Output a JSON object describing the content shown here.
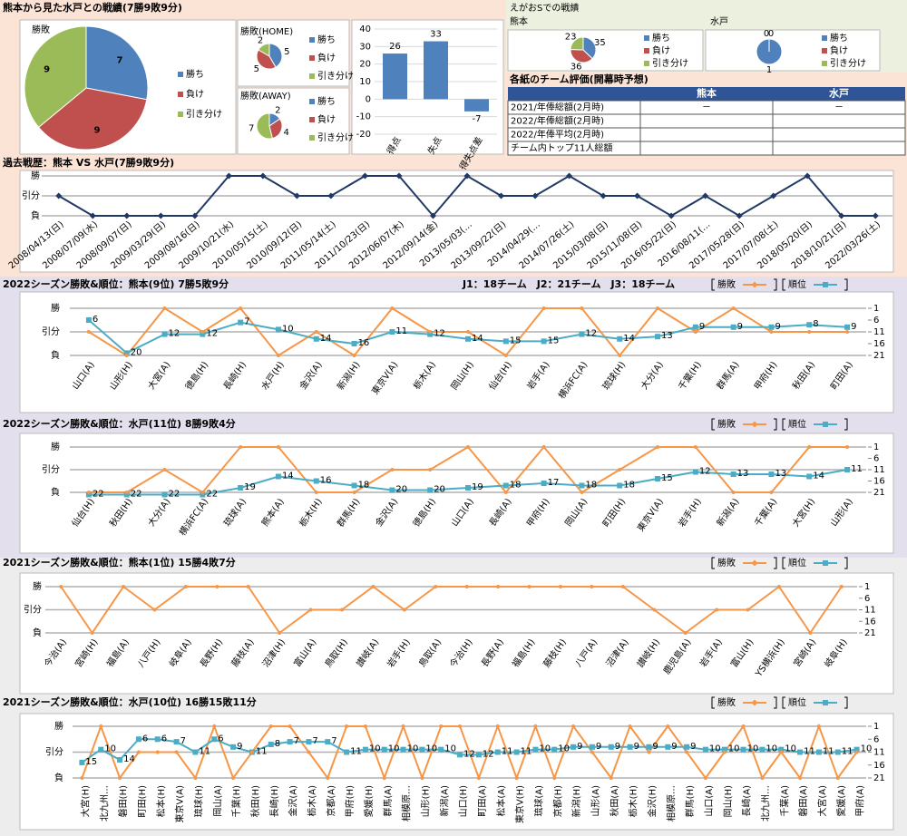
{
  "header": {
    "title": "熊本から見た水戸との戦績(7勝9敗9分)"
  },
  "egao": {
    "title": "えがおSでの戦績"
  },
  "table": {
    "title": "各紙のチーム評価(開幕時予想)",
    "header": [
      "熊本",
      "水戸"
    ],
    "rows": [
      [
        "2021/年俸総額(2月時)",
        "－",
        "－"
      ],
      [
        "2022/年俸総額(2月時)"
      ],
      [
        "2022/年俸平均(2月時)"
      ],
      [
        "チーム内トップ11人総額"
      ]
    ]
  },
  "chart_data": [
    {
      "type": "pie",
      "title": "勝敗",
      "categories": [
        "勝ち",
        "負け",
        "引き分け"
      ],
      "values": [
        7,
        9,
        9
      ],
      "colors": [
        "#4f81bd",
        "#c0504d",
        "#9bbb59"
      ]
    },
    {
      "type": "pie",
      "title": "勝敗(HOME)",
      "categories": [
        "勝ち",
        "負け",
        "引き分け"
      ],
      "values": [
        5,
        5,
        2
      ],
      "colors": [
        "#4f81bd",
        "#c0504d",
        "#9bbb59"
      ]
    },
    {
      "type": "pie",
      "title": "勝敗(AWAY)",
      "categories": [
        "勝ち",
        "負け",
        "引き分け"
      ],
      "values": [
        2,
        4,
        7
      ],
      "colors": [
        "#4f81bd",
        "#c0504d",
        "#9bbb59"
      ]
    },
    {
      "type": "bar",
      "categories": [
        "得点",
        "失点",
        "得失点差"
      ],
      "values": [
        26,
        33,
        -7
      ],
      "color": "#4f81bd",
      "ylim": [
        -20,
        40
      ],
      "yticks": [
        -20,
        -10,
        0,
        10,
        20,
        30,
        40
      ],
      "grid": true
    },
    {
      "type": "pie",
      "title": "熊本",
      "categories": [
        "勝ち",
        "負け",
        "引き分け"
      ],
      "values": [
        35,
        36,
        23
      ],
      "colors": [
        "#4f81bd",
        "#c0504d",
        "#9bbb59"
      ]
    },
    {
      "type": "pie",
      "title": "水戸",
      "categories": [
        "勝ち",
        "負け",
        "引き分け"
      ],
      "values": [
        1,
        0,
        0
      ],
      "colors": [
        "#4f81bd",
        "#c0504d",
        "#9bbb59"
      ]
    },
    {
      "type": "line",
      "title": "過去戦歴：熊本 VS 水戸(7勝9敗9分)",
      "categories": [
        "2008/04/13(日)",
        "2008/07/09(水)",
        "2008/09/07(日)",
        "2009/03/29(日)",
        "2009/08/16(日)",
        "2009/10/21(水)",
        "2010/05/15(土)",
        "2010/09/12(日)",
        "2011/05/14(土)",
        "2011/10/23(日)",
        "2012/06/07(木)",
        "2012/09/14(金)",
        "2013/05/03(…",
        "2013/09/22(日)",
        "2014/04/29(…",
        "2014/07/26(土)",
        "2015/03/08(日)",
        "2015/11/08(日)",
        "2016/05/22(日)",
        "2016/08/11(…",
        "2017/05/28(日)",
        "2017/07/08(土)",
        "2018/05/20(日)",
        "2018/10/21(日)",
        "2022/03/26(土)"
      ],
      "series": [
        {
          "name": "勝敗",
          "color": "#1f3864",
          "values": [
            0,
            -1,
            -1,
            -1,
            -1,
            1,
            1,
            0,
            0,
            1,
            1,
            -1,
            1,
            0,
            0,
            1,
            0,
            0,
            -1,
            0,
            -1,
            0,
            1,
            -1,
            -1
          ]
        }
      ],
      "ylim": [
        -1,
        1
      ],
      "yticks": [
        {
          "value": 1,
          "label": "勝"
        },
        {
          "value": 0,
          "label": "引分"
        },
        {
          "value": -1,
          "label": "負"
        }
      ],
      "grid": true
    },
    {
      "type": "line",
      "title": "2022シーズン勝敗&順位：熊本(9位) 7勝5敗9分",
      "annotation": "J1：18チーム　J2：21チーム　J3：18チーム",
      "categories": [
        "山口(A)",
        "山形(H)",
        "大宮(A)",
        "徳島(H)",
        "長崎(H)",
        "水戸(H)",
        "金沢(A)",
        "新潟(H)",
        "東京V(A)",
        "栃木(A)",
        "岡山(H)",
        "仙台(H)",
        "岩手(A)",
        "横浜FC(A)",
        "琉球(H)",
        "大分(A)",
        "千葉(H)",
        "群馬(A)",
        "甲府(H)",
        "秋田(A)",
        "町田(A)"
      ],
      "series": [
        {
          "name": "勝敗",
          "color": "#f79646",
          "values": [
            0,
            -1,
            1,
            0,
            1,
            -1,
            0,
            -1,
            1,
            0,
            0,
            -1,
            1,
            1,
            -1,
            1,
            0,
            1,
            0,
            0,
            0
          ]
        },
        {
          "name": "順位",
          "color": "#4bacc6",
          "axis": "y2",
          "values": [
            6,
            20,
            12,
            12,
            7,
            10,
            14,
            16,
            11,
            12,
            14,
            15,
            15,
            12,
            14,
            13,
            9,
            9,
            9,
            8,
            9
          ]
        }
      ],
      "ylim": [
        -1,
        1
      ],
      "yticks": [
        {
          "value": 1,
          "label": "勝"
        },
        {
          "value": 0,
          "label": "引分"
        },
        {
          "value": -1,
          "label": "負"
        }
      ],
      "y2lim": [
        1,
        21
      ],
      "y2_inverted": true,
      "y2ticks": [
        1,
        6,
        11,
        16,
        21
      ],
      "grid": true
    },
    {
      "type": "line",
      "title": "2022シーズン勝敗&順位：水戸(11位) 8勝9敗4分",
      "categories": [
        "仙台(H)",
        "秋田(H)",
        "大分(A)",
        "横浜FC(A)",
        "琉球(A)",
        "熊本(A)",
        "栃木(H)",
        "群馬(H)",
        "金沢(A)",
        "徳島(H)",
        "山口(A)",
        "長崎(A)",
        "甲府(H)",
        "岡山(A)",
        "町田(H)",
        "東京V(A)",
        "岩手(H)",
        "新潟(A)",
        "千葉(A)",
        "大宮(H)",
        "山形(A)"
      ],
      "series": [
        {
          "name": "勝敗",
          "color": "#f79646",
          "values": [
            -1,
            -1,
            0,
            -1,
            1,
            1,
            -1,
            -1,
            0,
            0,
            1,
            -1,
            1,
            -1,
            0,
            1,
            1,
            -1,
            -1,
            1,
            1
          ]
        },
        {
          "name": "順位",
          "color": "#4bacc6",
          "axis": "y2",
          "values": [
            22,
            22,
            22,
            22,
            19,
            14,
            16,
            18,
            20,
            20,
            19,
            18,
            17,
            18,
            18,
            15,
            12,
            13,
            13,
            14,
            11
          ]
        }
      ],
      "ylim": [
        -1,
        1
      ],
      "yticks": [
        {
          "value": 1,
          "label": "勝"
        },
        {
          "value": 0,
          "label": "引分"
        },
        {
          "value": -1,
          "label": "負"
        }
      ],
      "y2lim": [
        1,
        21
      ],
      "y2_inverted": true,
      "y2ticks": [
        1,
        6,
        11,
        16,
        21
      ],
      "grid": true
    },
    {
      "type": "line",
      "title": "2021シーズン勝敗&順位：熊本(1位) 15勝4敗7分",
      "categories": [
        "今治(A)",
        "宮崎(H)",
        "福島(A)",
        "八戸(H)",
        "岐阜(A)",
        "長野(H)",
        "藤枝(A)",
        "沼津(H)",
        "富山(A)",
        "鳥取(H)",
        "讃岐(A)",
        "岩手(H)",
        "鳥取(A)",
        "今治(H)",
        "長野(A)",
        "福島(H)",
        "藤枝(H)",
        "八戸(A)",
        "沼津(A)",
        "讃岐(H)",
        "鹿児島(A)",
        "岩手(A)",
        "富山(H)",
        "YS横浜(H)",
        "宮崎(A)",
        "岐阜(H)"
      ],
      "series": [
        {
          "name": "勝敗",
          "color": "#f79646",
          "values": [
            1,
            -1,
            1,
            0,
            1,
            1,
            1,
            -1,
            0,
            0,
            1,
            0,
            1,
            1,
            1,
            1,
            1,
            1,
            1,
            0,
            -1,
            0,
            0,
            1,
            -1,
            1
          ]
        },
        {
          "name": "順位",
          "color": "#4bacc6",
          "axis": "y2",
          "values": [
            null,
            null,
            null,
            null,
            null,
            null,
            null,
            null,
            null,
            null,
            null,
            null,
            null,
            null,
            null,
            null,
            null,
            null,
            null,
            null,
            null,
            null,
            null,
            null,
            null,
            null
          ]
        }
      ],
      "ylim": [
        -1,
        1
      ],
      "yticks": [
        {
          "value": 1,
          "label": "勝"
        },
        {
          "value": 0,
          "label": "引分"
        },
        {
          "value": -1,
          "label": "負"
        }
      ],
      "y2lim": [
        1,
        21
      ],
      "y2_inverted": true,
      "y2ticks": [
        1,
        6,
        11,
        16,
        21
      ],
      "grid": true
    },
    {
      "type": "line",
      "title": "2021シーズン勝敗&順位：水戸(10位) 16勝15敗11分",
      "categories": [
        "大宮(H)",
        "北九州…",
        "磐田(H)",
        "町田(H)",
        "松本(H)",
        "東京V(A)",
        "琉球(H)",
        "岡山(A)",
        "千葉(H)",
        "秋田(H)",
        "長崎(H)",
        "金沢(A)",
        "栃木(A)",
        "京都(A)",
        "甲府(H)",
        "愛媛(H)",
        "群馬(A)",
        "相模原…",
        "山形(H)",
        "新潟(A)",
        "山口(H)",
        "町田(A)",
        "松本(A)",
        "東京V(H)",
        "琉球(A)",
        "京都(H)",
        "新潟(H)",
        "山形(A)",
        "秋田(A)",
        "栃木(H)",
        "金沢(H)",
        "相模原…",
        "群馬(H)",
        "山口(A)",
        "岡山(H)",
        "長崎(A)",
        "北九州…",
        "千葉(A)",
        "磐田(A)",
        "大宮(A)",
        "愛媛(A)",
        "甲府(A)"
      ],
      "series": [
        {
          "name": "勝敗",
          "color": "#f79646",
          "values": [
            -1,
            1,
            -1,
            0,
            0,
            0,
            -1,
            1,
            -1,
            0,
            1,
            1,
            0,
            -1,
            1,
            1,
            -1,
            1,
            -1,
            1,
            1,
            -1,
            1,
            -1,
            1,
            -1,
            1,
            0,
            -1,
            1,
            0,
            1,
            0,
            -1,
            0,
            1,
            -1,
            0,
            -1,
            1,
            -1,
            0
          ]
        },
        {
          "name": "順位",
          "color": "#4bacc6",
          "axis": "y2",
          "values": [
            15,
            10,
            14,
            6,
            6,
            7,
            11,
            6,
            9,
            11,
            8,
            7,
            7,
            7,
            11,
            10,
            10,
            10,
            10,
            10,
            12,
            12,
            11,
            11,
            10,
            10,
            9,
            9,
            9,
            9,
            9,
            9,
            9,
            10,
            10,
            10,
            10,
            10,
            11,
            11,
            11,
            10
          ]
        }
      ],
      "ylim": [
        -1,
        1
      ],
      "yticks": [
        {
          "value": 1,
          "label": "勝"
        },
        {
          "value": 0,
          "label": "引分"
        },
        {
          "value": -1,
          "label": "負"
        }
      ],
      "y2lim": [
        1,
        21
      ],
      "y2_inverted": true,
      "y2ticks": [
        1,
        6,
        11,
        16,
        21
      ],
      "grid": true
    }
  ]
}
